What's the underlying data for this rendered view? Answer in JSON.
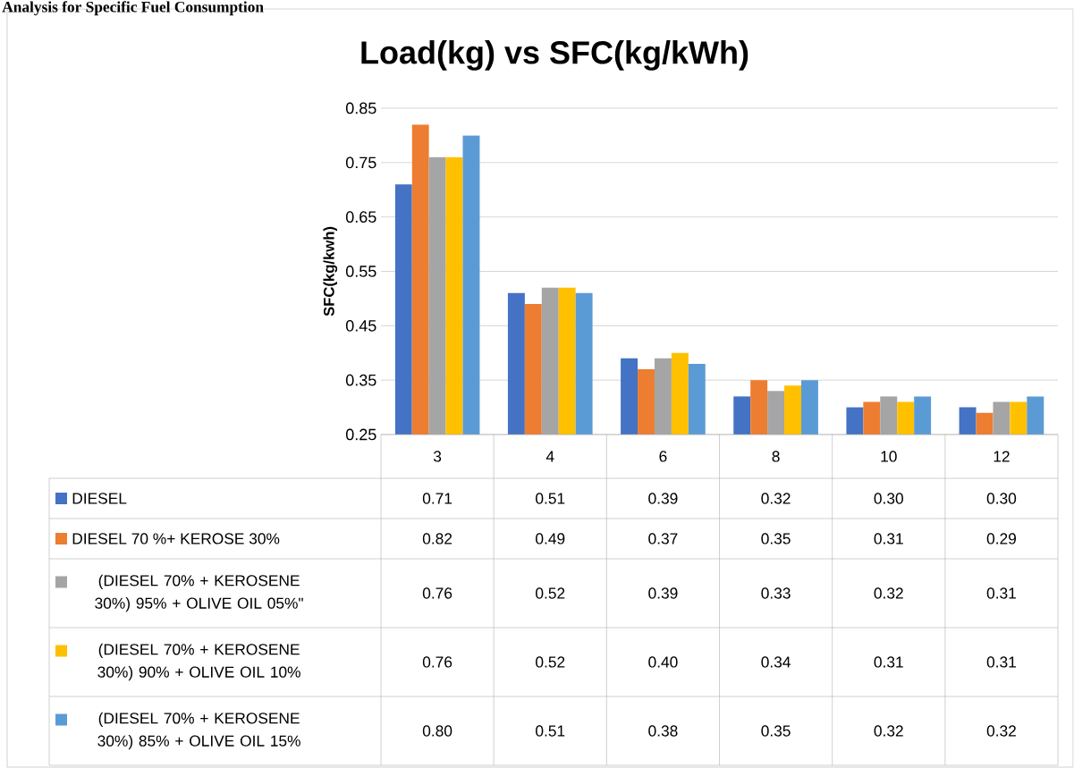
{
  "chart_data": {
    "type": "bar",
    "title": "Load(kg) vs SFC(kg/kWh)",
    "ylabel": "SFC(kg/kwh)",
    "annotations": [
      "Analysis for Specific Fuel Consumption"
    ],
    "categories": [
      "3",
      "4",
      "6",
      "8",
      "10",
      "12"
    ],
    "series": [
      {
        "name": "DIESEL",
        "color": "#4472c4",
        "values": [
          0.71,
          0.51,
          0.39,
          0.32,
          0.3,
          0.3
        ],
        "value_labels": [
          "0.71",
          "0.51",
          "0.39",
          "0.32",
          "0.30",
          "0.30"
        ]
      },
      {
        "name": "DIESEL 70 %+ KEROSE 30%",
        "color": "#ed7d31",
        "values": [
          0.82,
          0.49,
          0.37,
          0.35,
          0.31,
          0.29
        ],
        "value_labels": [
          "0.82",
          "0.49",
          "0.37",
          "0.35",
          "0.31",
          "0.29"
        ]
      },
      {
        "name": "(DIESEL 70% + KEROSENE 30%) 95% + OLIVE OIL 05%\"",
        "color": "#a5a5a5",
        "values": [
          0.76,
          0.52,
          0.39,
          0.33,
          0.32,
          0.31
        ],
        "value_labels": [
          "0.76",
          "0.52",
          "0.39",
          "0.33",
          "0.32",
          "0.31"
        ]
      },
      {
        "name": "(DIESEL 70% + KEROSENE 30%) 90% + OLIVE OIL 10%",
        "color": "#ffc000",
        "values": [
          0.76,
          0.52,
          0.4,
          0.34,
          0.31,
          0.31
        ],
        "value_labels": [
          "0.76",
          "0.52",
          "0.40",
          "0.34",
          "0.31",
          "0.31"
        ]
      },
      {
        "name": "(DIESEL 70% + KEROSENE 30%) 85% + OLIVE OIL 15%",
        "color": "#5b9bd5",
        "values": [
          0.8,
          0.51,
          0.38,
          0.35,
          0.32,
          0.32
        ],
        "value_labels": [
          "0.80",
          "0.51",
          "0.38",
          "0.35",
          "0.32",
          "0.32"
        ]
      }
    ],
    "ylim": [
      0.25,
      0.85
    ],
    "yticks": [
      0.25,
      0.35,
      0.45,
      0.55,
      0.65,
      0.75,
      0.85
    ],
    "grid": "y",
    "legend": "bottom"
  }
}
